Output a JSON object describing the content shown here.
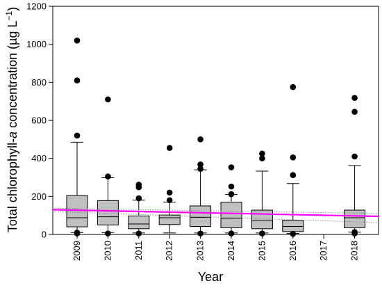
{
  "chart_data": {
    "type": "box",
    "xlabel": "Year",
    "ylabel_parts": {
      "pre": "Total chlorophyll-",
      "ital": "a",
      "post": " concentration (µg L",
      "sup": "−1",
      "close": ")"
    },
    "ylim": [
      0,
      1200
    ],
    "yticks": [
      0,
      200,
      400,
      600,
      800,
      1000,
      1200
    ],
    "categories": [
      "2009",
      "2010",
      "2011",
      "2012",
      "2013",
      "2014",
      "2015",
      "2016",
      "2017",
      "2018"
    ],
    "boxes": [
      {
        "year": "2009",
        "whisker_low": 10,
        "q1": 40,
        "median": 88,
        "q3": 205,
        "whisker_high": 485,
        "outliers": [
          5,
          10,
          520,
          810,
          1020
        ]
      },
      {
        "year": "2010",
        "whisker_low": 10,
        "q1": 50,
        "median": 93,
        "q3": 178,
        "whisker_high": 298,
        "outliers": [
          5,
          305,
          710
        ]
      },
      {
        "year": "2011",
        "whisker_low": 8,
        "q1": 30,
        "median": 55,
        "q3": 97,
        "whisker_high": 180,
        "outliers": [
          5,
          190,
          248,
          262
        ]
      },
      {
        "year": "2012",
        "whisker_low": 8,
        "q1": 52,
        "median": 88,
        "q3": 102,
        "whisker_high": 170,
        "outliers": [
          180,
          220,
          455
        ]
      },
      {
        "year": "2013",
        "whisker_low": 8,
        "q1": 42,
        "median": 90,
        "q3": 150,
        "whisker_high": 340,
        "outliers": [
          5,
          345,
          368,
          500
        ]
      },
      {
        "year": "2014",
        "whisker_low": 8,
        "q1": 35,
        "median": 85,
        "q3": 170,
        "whisker_high": 210,
        "outliers": [
          5,
          212,
          252,
          353
        ]
      },
      {
        "year": "2015",
        "whisker_low": 8,
        "q1": 30,
        "median": 72,
        "q3": 128,
        "whisker_high": 333,
        "outliers": [
          5,
          400,
          425
        ]
      },
      {
        "year": "2016",
        "whisker_low": 5,
        "q1": 15,
        "median": 42,
        "q3": 75,
        "whisker_high": 268,
        "outliers": [
          3,
          312,
          405,
          775
        ]
      },
      {
        "year": "2018",
        "whisker_low": 12,
        "q1": 35,
        "median": 88,
        "q3": 128,
        "whisker_high": 362,
        "outliers": [
          5,
          12,
          410,
          645,
          718
        ]
      }
    ],
    "trend_line": {
      "color": "#ff00ff",
      "start": 130,
      "end": 95
    },
    "confidence_band": {
      "upper": [
        138,
        110
      ],
      "lower": [
        120,
        62
      ]
    },
    "colors": {
      "box_fill": "#c0c0c0",
      "outline": "#000000",
      "band": "#888888"
    }
  }
}
